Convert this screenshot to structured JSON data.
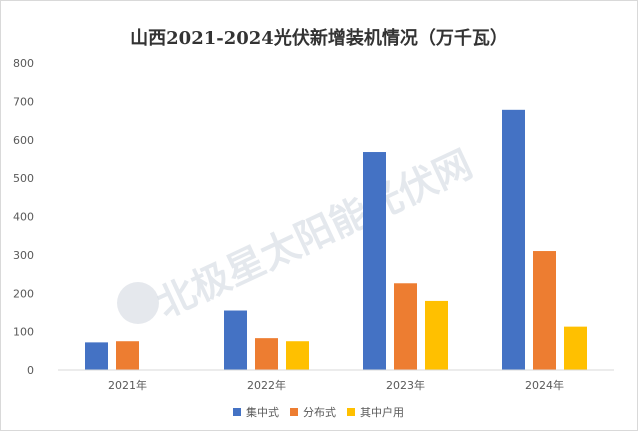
{
  "chart_data": {
    "type": "bar",
    "title": "山西2021-2024光伏新增装机情况（万千瓦）",
    "categories": [
      "2021年",
      "2022年",
      "2023年",
      "2024年"
    ],
    "series": [
      {
        "name": "集中式",
        "color": "#4472C4",
        "values": [
          72,
          155,
          568,
          678
        ]
      },
      {
        "name": "分布式",
        "color": "#ED7D31",
        "values": [
          75,
          83,
          226,
          310
        ]
      },
      {
        "name": "其中户用",
        "color": "#FFC000",
        "values": [
          null,
          75,
          180,
          113
        ]
      }
    ],
    "ylim": [
      0,
      800
    ],
    "yticks": [
      0,
      100,
      200,
      300,
      400,
      500,
      600,
      700,
      800
    ],
    "grid": false,
    "legend": "bottom"
  },
  "watermark": "北极星太阳能光伏网"
}
